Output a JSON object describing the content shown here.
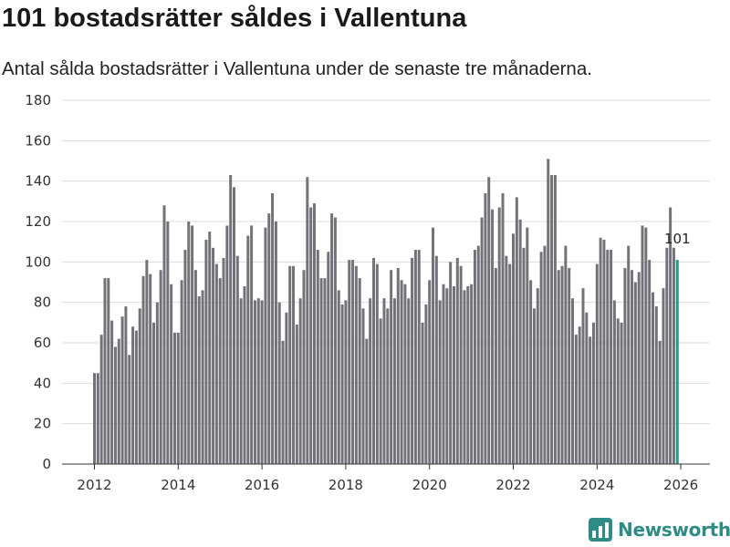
{
  "chart_data": {
    "type": "bar",
    "title": "101 bostadsrätter såldes i Vallentuna",
    "subtitle": "Antal sålda bostadsrätter i Vallentuna under de senaste tre månaderna.",
    "xlabel": "",
    "ylabel": "",
    "ylim": [
      0,
      180
    ],
    "yticks": [
      0,
      20,
      40,
      60,
      80,
      100,
      120,
      140,
      160,
      180
    ],
    "xticks": [
      2012,
      2014,
      2016,
      2018,
      2020,
      2022,
      2024,
      2026
    ],
    "x_start": 2012.0,
    "x_step": 0.0833333,
    "highlight_color": "#1f9a8a",
    "bar_color": "#737278",
    "highlight_label": "101",
    "values": [
      45,
      45,
      64,
      92,
      92,
      71,
      58,
      62,
      73,
      78,
      54,
      68,
      66,
      77,
      93,
      101,
      94,
      70,
      80,
      96,
      128,
      120,
      89,
      65,
      65,
      91,
      106,
      120,
      118,
      96,
      83,
      86,
      111,
      115,
      107,
      99,
      92,
      102,
      118,
      143,
      137,
      103,
      82,
      88,
      113,
      118,
      81,
      82,
      81,
      117,
      124,
      134,
      120,
      80,
      61,
      75,
      98,
      98,
      69,
      82,
      96,
      142,
      127,
      129,
      106,
      92,
      92,
      105,
      124,
      122,
      86,
      79,
      81,
      101,
      101,
      98,
      92,
      77,
      62,
      82,
      102,
      99,
      72,
      82,
      77,
      96,
      82,
      97,
      91,
      89,
      82,
      102,
      106,
      106,
      70,
      79,
      91,
      117,
      103,
      81,
      89,
      87,
      100,
      88,
      102,
      98,
      86,
      88,
      89,
      106,
      108,
      122,
      134,
      142,
      126,
      97,
      127,
      134,
      103,
      99,
      114,
      132,
      121,
      107,
      117,
      91,
      77,
      87,
      105,
      108,
      151,
      143,
      143,
      96,
      98,
      108,
      97,
      82,
      64,
      68,
      87,
      75,
      63,
      70,
      99,
      112,
      111,
      106,
      106,
      81,
      72,
      70,
      97,
      108,
      96,
      90,
      95,
      118,
      117,
      101,
      85,
      78,
      61,
      87,
      107,
      127,
      107,
      101
    ]
  },
  "branding": {
    "name": "Newsworthy"
  }
}
